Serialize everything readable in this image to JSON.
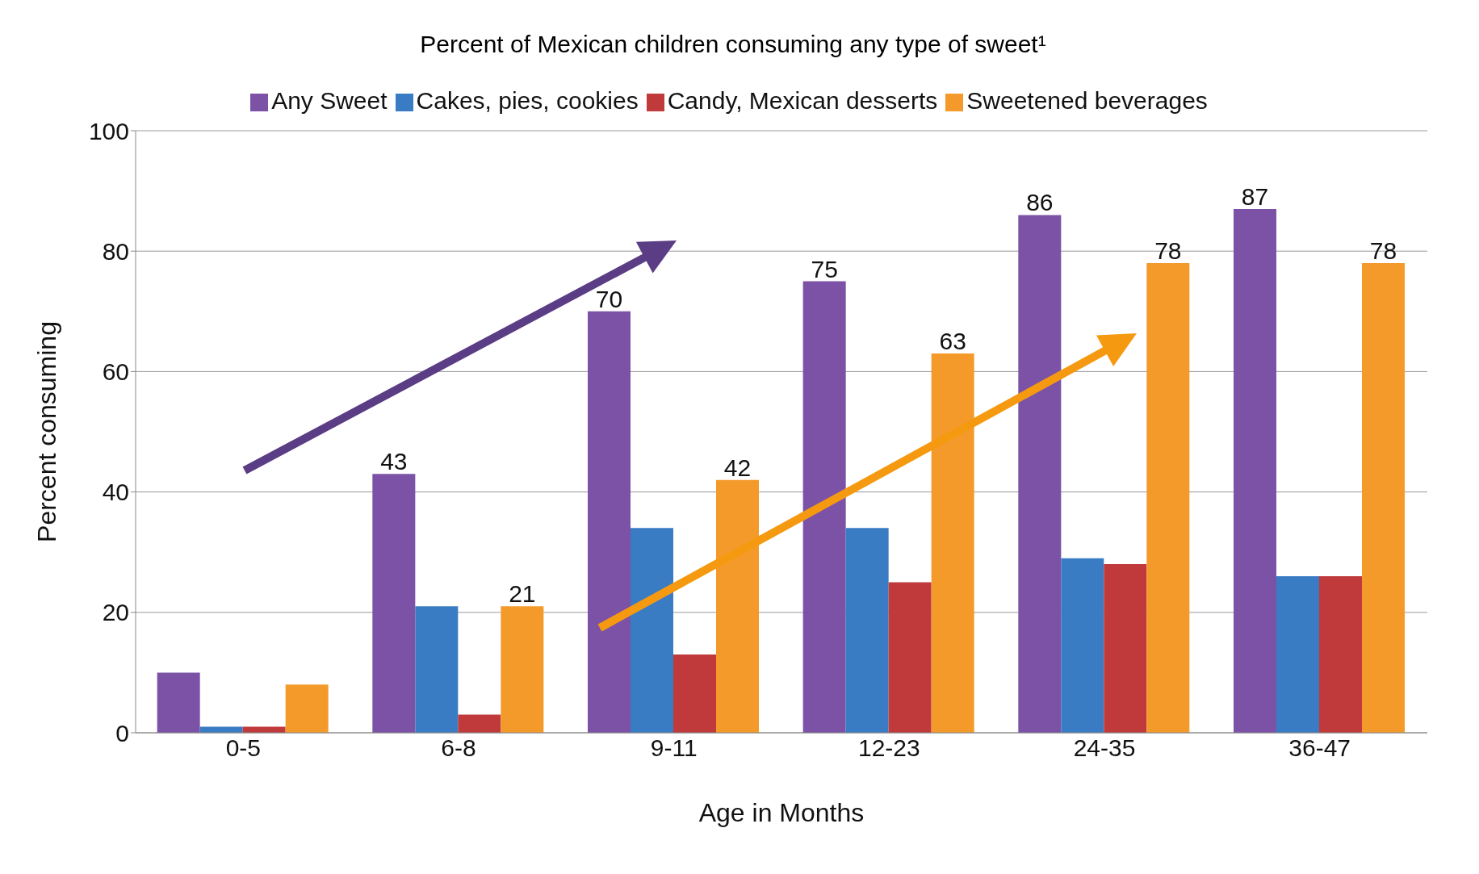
{
  "chart_data": {
    "type": "bar",
    "title": "Percent of Mexican children consuming any type of sweet¹",
    "xlabel": "Age in Months",
    "ylabel": "Percent consuming",
    "categories": [
      "0-5",
      "6-8",
      "9-11",
      "12-23",
      "24-35",
      "36-47"
    ],
    "series": [
      {
        "name": "Any Sweet",
        "color": "#7b52a6",
        "values": [
          10,
          43,
          70,
          75,
          86,
          87
        ],
        "value_labels": [
          null,
          "43",
          "70",
          "75",
          "86",
          "87"
        ]
      },
      {
        "name": "Cakes, pies, cookies",
        "color": "#3a7cc4",
        "values": [
          1,
          21,
          34,
          34,
          29,
          26
        ]
      },
      {
        "name": "Candy, Mexican desserts",
        "color": "#c0393b",
        "values": [
          1,
          3,
          13,
          25,
          28,
          26
        ]
      },
      {
        "name": "Sweetened beverages",
        "color": "#f39a2b",
        "values": [
          8,
          21,
          42,
          63,
          78,
          78
        ],
        "value_labels": [
          null,
          "21",
          "42",
          "63",
          "78",
          "78"
        ]
      }
    ],
    "ylim": [
      0,
      100
    ],
    "yticks": [
      0,
      20,
      40,
      60,
      80,
      100
    ],
    "grid": "y",
    "legend": "top"
  }
}
